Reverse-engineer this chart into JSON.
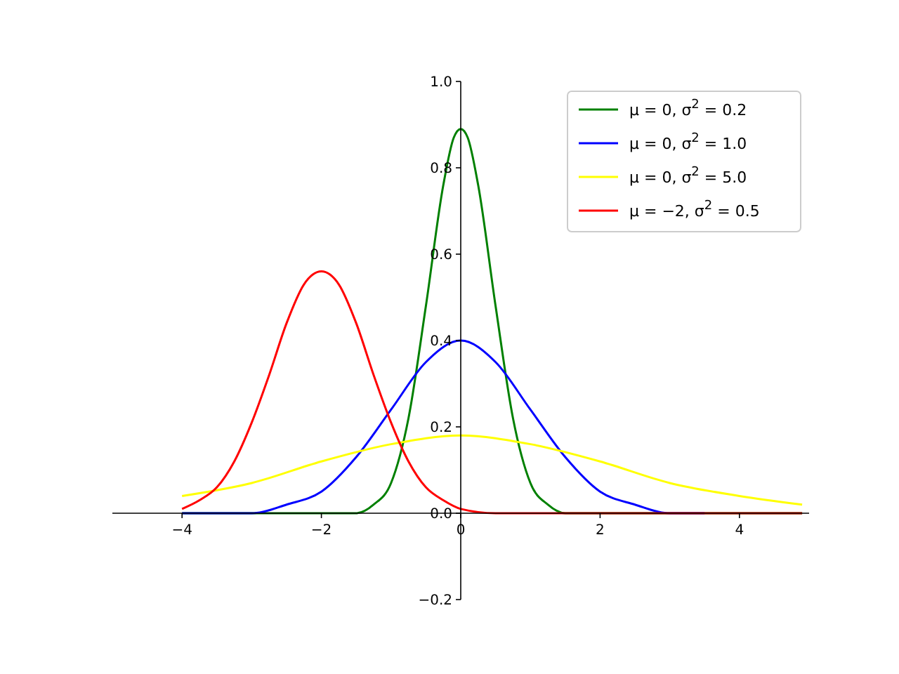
{
  "chart_data": {
    "type": "line",
    "xlim": [
      -5,
      5
    ],
    "ylim": [
      -0.2,
      1.0
    ],
    "xticks": [
      -4,
      -2,
      0,
      2,
      4
    ],
    "yticks": [
      -0.2,
      {
        "value": 0,
        "label": "0.0"
      },
      0.2,
      0.4,
      0.6,
      0.8,
      {
        "value": 1,
        "label": "1.0"
      }
    ],
    "legend": "top right",
    "grid": false,
    "series": [
      {
        "name": "μ = 0, σ$^{2}$ = 0.2",
        "color": "#008000",
        "x": [
          -4,
          -2,
          -1.5,
          -1.25,
          -1,
          -0.75,
          -0.5,
          -0.25,
          -0.1,
          0,
          0.1,
          0.25,
          0.5,
          0.75,
          1,
          1.25,
          1.5,
          2,
          4.9
        ],
        "values": [
          0,
          0,
          0,
          0.02,
          0.07,
          0.22,
          0.48,
          0.76,
          0.87,
          0.89,
          0.87,
          0.76,
          0.48,
          0.22,
          0.07,
          0.02,
          0,
          0,
          0
        ]
      },
      {
        "name": "μ = 0, σ$^{2}$ = 1.0",
        "color": "#0000ff",
        "x": [
          -4,
          -3,
          -2.5,
          -2,
          -1.5,
          -1,
          -0.5,
          0,
          0.5,
          1,
          1.5,
          2,
          2.5,
          3,
          3.5
        ],
        "values": [
          0,
          0,
          0.02,
          0.05,
          0.13,
          0.24,
          0.35,
          0.4,
          0.35,
          0.24,
          0.13,
          0.05,
          0.02,
          0,
          0
        ]
      },
      {
        "name": "μ = 0, σ$^{2}$ = 5.0",
        "color": "#ffff00",
        "x": [
          -4,
          -3,
          -2,
          -1,
          0,
          1,
          2,
          3,
          4,
          4.9
        ],
        "values": [
          0.04,
          0.07,
          0.12,
          0.16,
          0.18,
          0.16,
          0.12,
          0.07,
          0.04,
          0.02
        ]
      },
      {
        "name": "μ = −2, σ$^{2}$ = 0.5",
        "color": "#ff0000",
        "x": [
          -4,
          -3.75,
          -3.5,
          -3.25,
          -3,
          -2.75,
          -2.5,
          -2.25,
          -2,
          -1.75,
          -1.5,
          -1.25,
          -1,
          -0.75,
          -0.5,
          -0.25,
          0,
          0.5,
          1,
          4.9
        ],
        "values": [
          0.01,
          0.03,
          0.06,
          0.12,
          0.21,
          0.32,
          0.44,
          0.53,
          0.56,
          0.53,
          0.44,
          0.32,
          0.21,
          0.12,
          0.06,
          0.03,
          0.01,
          0,
          0,
          0
        ]
      }
    ]
  }
}
